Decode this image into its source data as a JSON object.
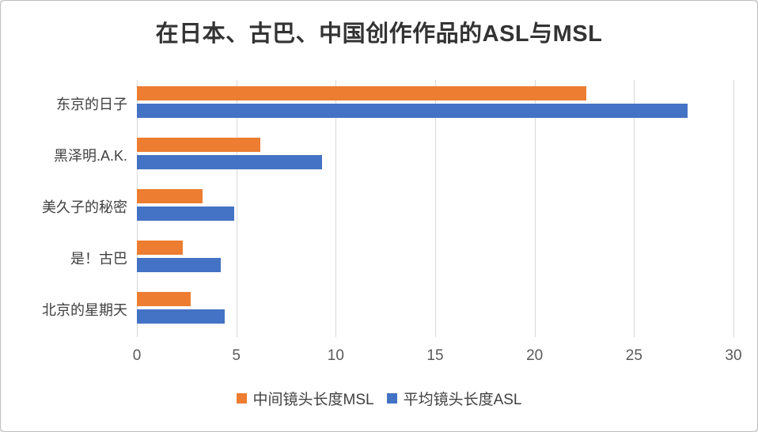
{
  "chart_data": {
    "type": "bar",
    "orientation": "horizontal",
    "title": "在日本、古巴、中国创作作品的ASL与MSL",
    "categories": [
      "东京的日子",
      "黑泽明.A.K.",
      "美久子的秘密",
      "是！古巴",
      "北京的星期天"
    ],
    "series": [
      {
        "name": "中间镜头长度MSL",
        "color": "#ED7D31",
        "values": [
          22.6,
          6.2,
          3.3,
          2.3,
          2.7
        ]
      },
      {
        "name": "平均镜头长度ASL",
        "color": "#4472C4",
        "values": [
          27.7,
          9.3,
          4.9,
          4.2,
          4.4
        ]
      }
    ],
    "x_axis": {
      "min": 0,
      "max": 30,
      "ticks": [
        0,
        5,
        10,
        15,
        20,
        25,
        30
      ],
      "tick_color": "#595959",
      "gridline_color": "#D9D9D9",
      "grid": "on"
    },
    "legend": {
      "position": "bottom"
    },
    "colors": {
      "title": "#333333",
      "category_label": "#404040",
      "frame_border": "#BFBFBF",
      "background": "#FFFFFF"
    }
  }
}
